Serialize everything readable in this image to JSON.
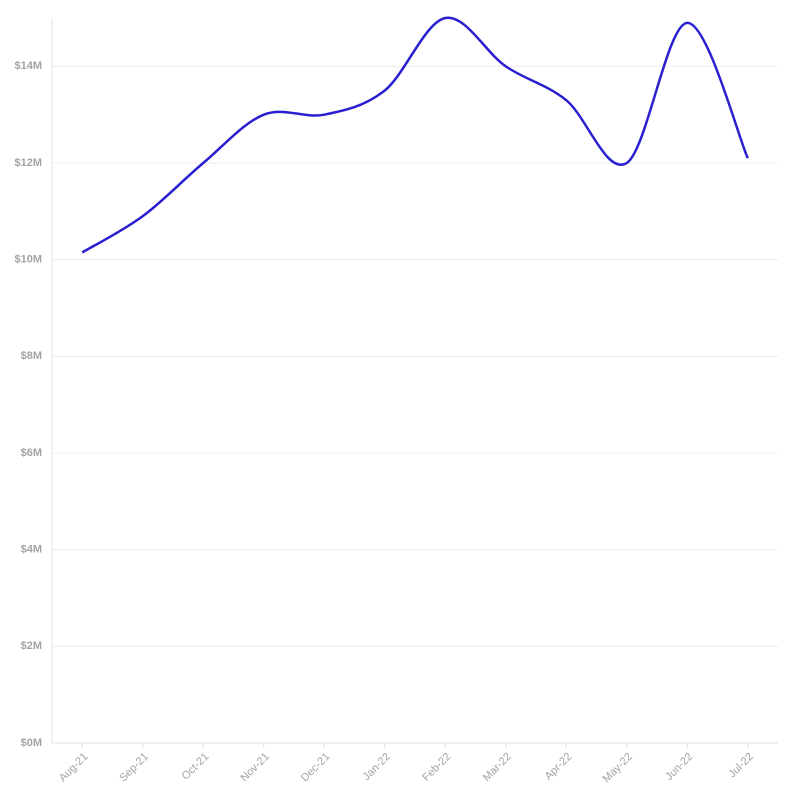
{
  "chart_data": {
    "type": "line",
    "categories": [
      "Aug-21",
      "Sep-21",
      "Oct-21",
      "Nov-21",
      "Dec-21",
      "Jan-22",
      "Feb-22",
      "Mar-22",
      "Apr-22",
      "May-22",
      "Jun-22",
      "Jul-22"
    ],
    "series": [
      {
        "color": "#2a1fd0",
        "values": [
          10150000,
          10900000,
          12000000,
          13000000,
          13000000,
          13500000,
          15000000,
          14000000,
          13300000,
          12000000,
          14900000,
          12100000
        ]
      }
    ],
    "ylim": [
      0,
      15000000
    ],
    "yticks": [
      {
        "value": 0,
        "label": "$0M"
      },
      {
        "value": 2000000,
        "label": "$2M"
      },
      {
        "value": 4000000,
        "label": "$4M"
      },
      {
        "value": 6000000,
        "label": "$6M"
      },
      {
        "value": 8000000,
        "label": "$8M"
      },
      {
        "value": 10000000,
        "label": "$10M"
      },
      {
        "value": 12000000,
        "label": "$12M"
      },
      {
        "value": 14000000,
        "label": "$14M"
      }
    ],
    "grid": true
  }
}
